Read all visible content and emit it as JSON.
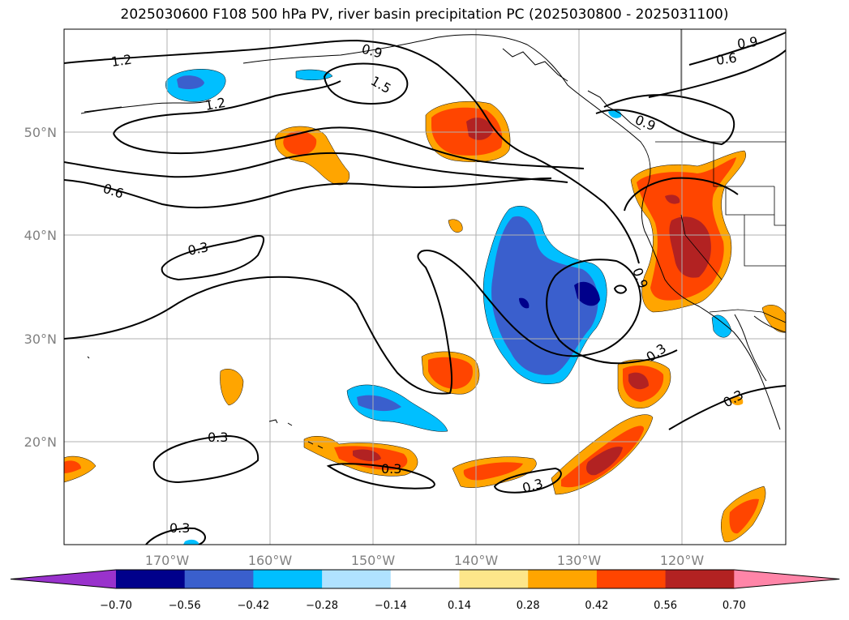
{
  "title": "2025030600 F108 500 hPa PV, river basin precipitation PC (2025030800 - 2025031100)",
  "latitude_labels": [
    "50°N",
    "40°N",
    "30°N",
    "20°N"
  ],
  "longitude_labels": [
    "170°W",
    "160°W",
    "150°W",
    "140°W",
    "130°W",
    "120°W"
  ],
  "colorbar": {
    "tick_labels": [
      "−0.70",
      "−0.56",
      "−0.42",
      "−0.28",
      "−0.14",
      "0.14",
      "0.28",
      "0.42",
      "0.56",
      "0.70"
    ],
    "colors": [
      "#9932cc",
      "#00008b",
      "#3a5fcd",
      "#00bfff",
      "#b0e2ff",
      "#ffffff",
      "#fde68a",
      "#ffa500",
      "#ff4500",
      "#b22222",
      "#ff85a8"
    ]
  },
  "contour_labels": [
    "1.2",
    "1.2",
    "0.9",
    "1.5",
    "0.9",
    "0.6",
    "0.9",
    "0.6",
    "0.3",
    "0.9",
    "0.3",
    "0.3",
    "0.3",
    "0.3",
    "0.3",
    "0.3"
  ]
}
